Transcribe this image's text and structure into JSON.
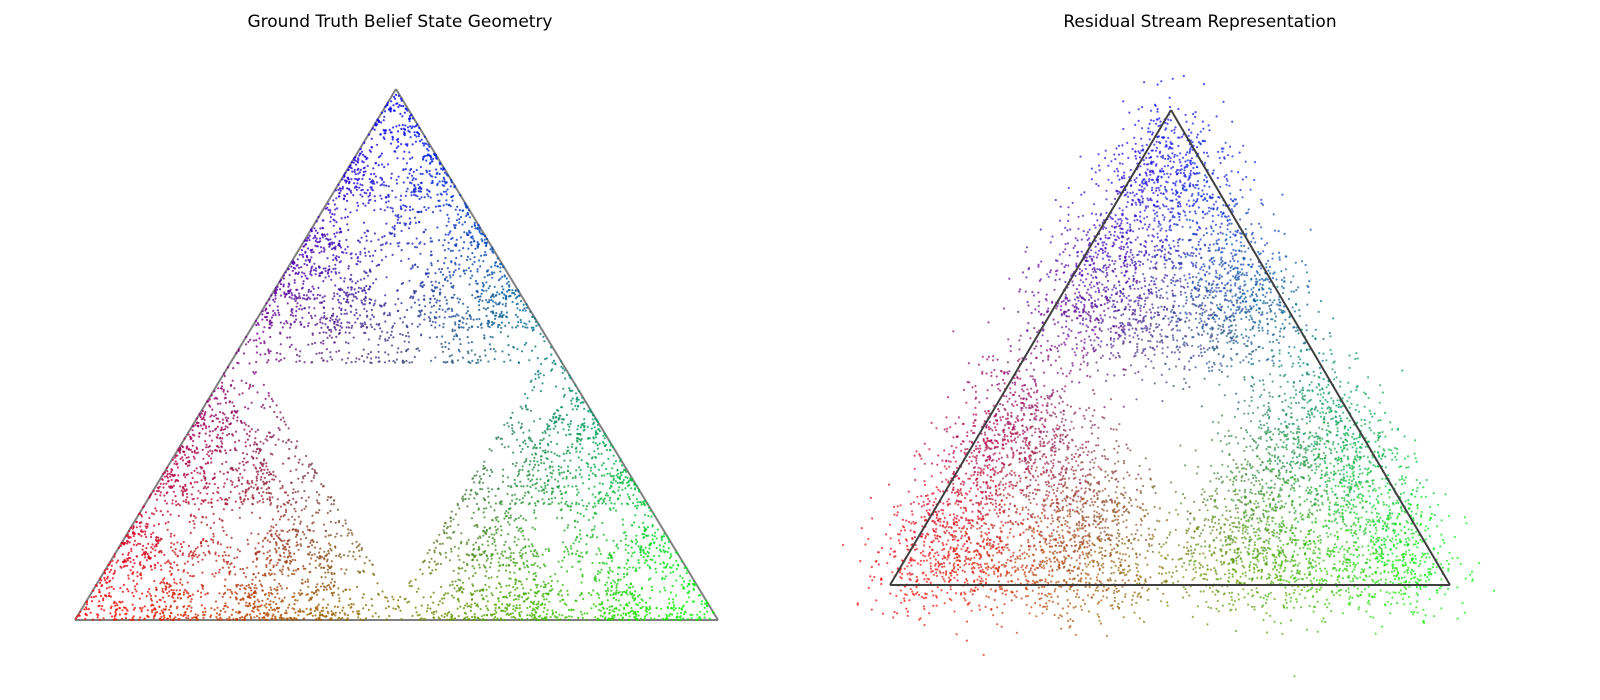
{
  "chart_data": [
    {
      "type": "scatter",
      "title": "Ground Truth Belief State Geometry",
      "xlabel": "",
      "ylabel": "",
      "axes_visible": false,
      "grid": false,
      "legend": "none",
      "simplex": {
        "vertices": [
          [
            0,
            0
          ],
          [
            1,
            0
          ],
          [
            0.5,
            0.866
          ]
        ],
        "edge_color": "#808080"
      },
      "vertex_colors": {
        "bottom-left": "#ff0000",
        "bottom-right": "#00ff00",
        "top": "#0000ff"
      },
      "estimated_point_count": 6000,
      "structure": "fractal Sierpinski-like clusters of belief states inside the simplex, dense at the three corners, empty central region",
      "color_rule": "rgb = (belief in state A, belief in state B, belief in state C)",
      "sample_points": [
        {
          "x": 0.02,
          "y": 0.01,
          "color": "#ff0000"
        },
        {
          "x": 0.98,
          "y": 0.01,
          "color": "#00ff00"
        },
        {
          "x": 0.5,
          "y": 0.85,
          "color": "#0000ff"
        },
        {
          "x": 0.5,
          "y": 0.05,
          "color": "#808000"
        },
        {
          "x": 0.26,
          "y": 0.43,
          "color": "#800080"
        },
        {
          "x": 0.74,
          "y": 0.43,
          "color": "#008080"
        },
        {
          "x": 0.36,
          "y": 0.2,
          "color": "#8b4530"
        },
        {
          "x": 0.64,
          "y": 0.2,
          "color": "#4a7a30"
        },
        {
          "x": 0.5,
          "y": 0.46,
          "color": "#3c3c82"
        }
      ]
    },
    {
      "type": "scatter",
      "title": "Residual Stream Representation",
      "xlabel": "",
      "ylabel": "",
      "axes_visible": false,
      "grid": false,
      "legend": "none",
      "simplex": {
        "vertices": [
          [
            0,
            0
          ],
          [
            1,
            0
          ],
          [
            0.5,
            0.866
          ]
        ],
        "edge_color": "#404040"
      },
      "vertex_colors": {
        "bottom-left": "#ff0000",
        "bottom-right": "#00ff00",
        "top": "#0000ff"
      },
      "estimated_point_count": 8000,
      "structure": "noisy projection of the same belief states; diffuse clouds overlapping the simplex, dense blobs at the three corners",
      "color_rule": "same coloring as ground truth",
      "sample_points": [
        {
          "x": -0.01,
          "y": -0.01,
          "color": "#ff0000"
        },
        {
          "x": 1.01,
          "y": 0.0,
          "color": "#00ff00"
        },
        {
          "x": 0.5,
          "y": 0.9,
          "color": "#0000ff"
        },
        {
          "x": 0.5,
          "y": 0.05,
          "color": "#808000"
        },
        {
          "x": 0.26,
          "y": 0.45,
          "color": "#800080"
        },
        {
          "x": 0.74,
          "y": 0.45,
          "color": "#008080"
        }
      ]
    }
  ]
}
